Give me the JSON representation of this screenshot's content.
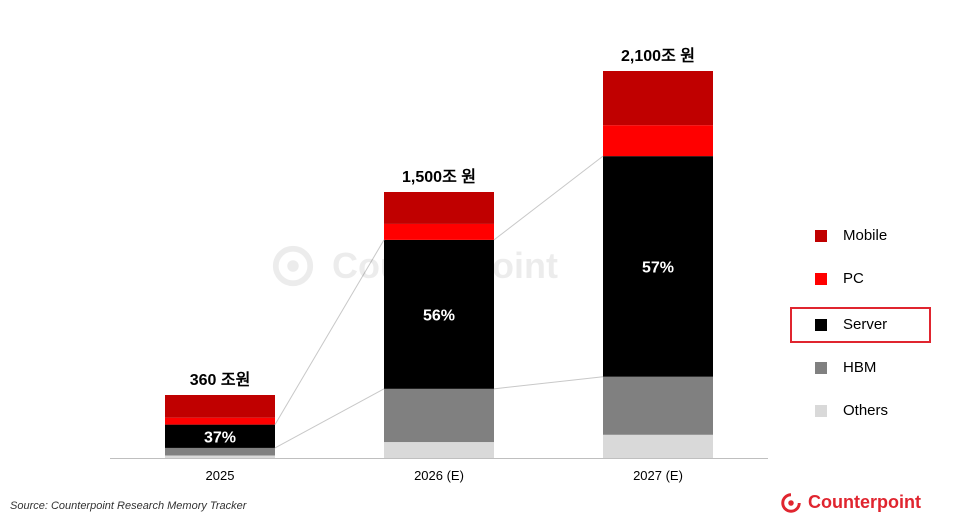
{
  "chart_data": {
    "type": "bar",
    "stacked": true,
    "categories": [
      "2025",
      "2026 (E)",
      "2027 (E)"
    ],
    "totals_labels": [
      "360 조원",
      "1,500조 원",
      "2,100조 원"
    ],
    "series": [
      {
        "name": "Others",
        "color": "#d9d9d9",
        "values": [
          4,
          6,
          6
        ]
      },
      {
        "name": "HBM",
        "color": "#808080",
        "values": [
          12,
          20,
          15
        ]
      },
      {
        "name": "Server",
        "color": "#000000",
        "values": [
          37,
          56,
          57
        ]
      },
      {
        "name": "PC",
        "color": "#ff0000",
        "values": [
          11,
          6,
          8
        ]
      },
      {
        "name": "Mobile",
        "color": "#c00000",
        "values": [
          36,
          12,
          14
        ]
      }
    ],
    "segment_labels": [
      {
        "series": "Server",
        "category": "2025",
        "text": "37%"
      },
      {
        "series": "Server",
        "category": "2026 (E)",
        "text": "56%"
      },
      {
        "series": "Server",
        "category": "2027 (E)",
        "text": "57%"
      }
    ],
    "legend": {
      "placement": "right",
      "order": [
        "Mobile",
        "PC",
        "Server",
        "HBM",
        "Others"
      ],
      "highlighted": "Server"
    },
    "title": "",
    "xlabel": "",
    "ylabel": ""
  },
  "source": "Source: Counterpoint Research Memory Tracker",
  "brand": {
    "name": "Counterpoint",
    "color": "#e0252f",
    "icon": "counterpoint-logo-icon"
  },
  "watermark": {
    "name": "Counterpoint",
    "icon": "counterpoint-logo-icon"
  }
}
